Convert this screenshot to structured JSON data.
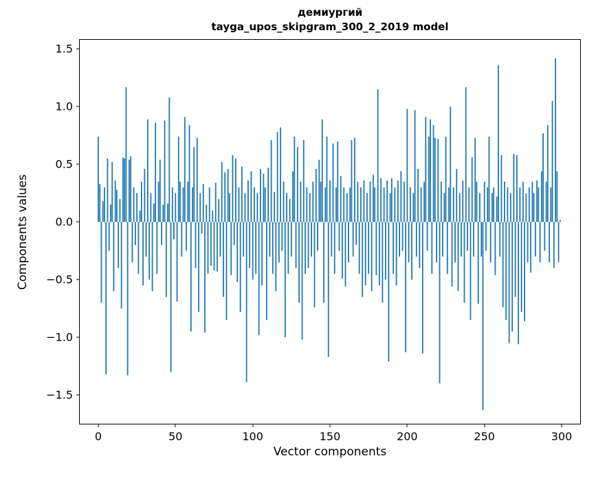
{
  "figure": {
    "background": "#ffffff"
  },
  "chart_data": {
    "type": "bar",
    "title": "демиургий",
    "subtitle": "tayga_upos_skipgram_300_2_2019 model",
    "xlabel": "Vector components",
    "ylabel": "Components values",
    "bar_color": "#1f77b4",
    "grid": false,
    "legend": "none",
    "xlim": [
      -12,
      312
    ],
    "ylim": [
      -1.75,
      1.58
    ],
    "x_ticks": [
      {
        "value": 0,
        "label": "0"
      },
      {
        "value": 50,
        "label": "50"
      },
      {
        "value": 100,
        "label": "100"
      },
      {
        "value": 150,
        "label": "150"
      },
      {
        "value": 200,
        "label": "200"
      },
      {
        "value": 250,
        "label": "250"
      },
      {
        "value": 300,
        "label": "300"
      }
    ],
    "y_ticks": [
      {
        "value": 1.5,
        "label": "1.5"
      },
      {
        "value": 1.0,
        "label": "1.0"
      },
      {
        "value": 0.5,
        "label": "0.5"
      },
      {
        "value": 0.0,
        "label": "0.0"
      },
      {
        "value": -0.5,
        "label": "−0.5"
      },
      {
        "value": -1.0,
        "label": "−1.0"
      },
      {
        "value": -1.5,
        "label": "−1.5"
      }
    ],
    "x_start": 0,
    "values": [
      0.74,
      0.33,
      -0.7,
      0.18,
      0.3,
      -1.32,
      0.55,
      -0.25,
      0.15,
      0.52,
      -0.6,
      0.36,
      0.28,
      -0.4,
      0.2,
      -0.75,
      0.56,
      0.55,
      1.17,
      -1.33,
      0.54,
      0.57,
      -0.35,
      0.3,
      -0.2,
      0.25,
      -0.45,
      0.1,
      0.35,
      -0.55,
      0.46,
      -0.3,
      0.89,
      -0.5,
      0.25,
      -0.6,
      0.16,
      0.86,
      -0.45,
      0.35,
      0.54,
      -0.2,
      0.15,
      0.88,
      -0.65,
      0.16,
      1.08,
      -1.3,
      0.3,
      -0.15,
      0.25,
      -0.69,
      0.74,
      0.35,
      -0.3,
      0.3,
      0.91,
      -0.25,
      0.35,
      0.84,
      -0.95,
      0.3,
      0.65,
      -0.4,
      0.73,
      -0.78,
      0.25,
      -0.1,
      0.33,
      -0.96,
      0.15,
      -0.45,
      0.3,
      -0.38,
      0.1,
      -0.42,
      0.34,
      -0.43,
      0.2,
      -0.3,
      0.52,
      -0.65,
      0.43,
      -0.85,
      0.46,
      0.25,
      -0.46,
      0.58,
      -0.2,
      0.55,
      -0.52,
      0.3,
      -0.78,
      0.48,
      -0.3,
      0.25,
      -1.39,
      0.36,
      -0.4,
      0.44,
      -0.5,
      0.3,
      -0.45,
      0.25,
      -0.98,
      0.46,
      -0.55,
      0.42,
      0.3,
      -0.85,
      0.47,
      -0.3,
      0.71,
      -0.45,
      0.26,
      -0.6,
      0.78,
      -0.35,
      0.82,
      -0.25,
      0.35,
      -1.0,
      0.25,
      -0.45,
      0.2,
      -0.3,
      0.44,
      0.74,
      -0.4,
      0.65,
      -0.7,
      0.35,
      -1.02,
      0.71,
      -0.45,
      0.3,
      -0.4,
      0.25,
      -0.3,
      0.35,
      -0.74,
      0.46,
      -0.25,
      0.54,
      0.35,
      0.89,
      -0.7,
      0.3,
      0.74,
      -1.17,
      0.36,
      -0.3,
      0.68,
      -0.45,
      0.3,
      0.7,
      -0.25,
      0.4,
      -0.49,
      0.3,
      -0.56,
      0.25,
      -0.35,
      0.3,
      0.71,
      -0.3,
      0.73,
      -0.2,
      0.35,
      -0.45,
      0.3,
      -0.65,
      0.36,
      -0.55,
      0.25,
      -0.45,
      0.35,
      -0.6,
      0.41,
      0.3,
      -0.46,
      1.15,
      -0.55,
      0.38,
      -0.7,
      0.3,
      -0.5,
      0.36,
      -1.21,
      0.25,
      0.38,
      -0.45,
      0.3,
      -0.55,
      0.36,
      -0.3,
      0.44,
      -0.25,
      0.35,
      -1.13,
      0.98,
      -0.35,
      0.3,
      -0.5,
      0.25,
      0.97,
      -0.3,
      0.46,
      -0.4,
      0.3,
      -1.14,
      0.35,
      0.91,
      -0.25,
      0.74,
      0.89,
      -0.45,
      0.84,
      0.73,
      -0.35,
      0.72,
      -1.4,
      0.35,
      -0.3,
      0.25,
      0.74,
      -0.45,
      0.3,
      1.0,
      -0.56,
      0.3,
      -0.35,
      0.46,
      -0.6,
      0.25,
      -0.3,
      0.36,
      -0.7,
      1.17,
      -0.25,
      0.3,
      -0.85,
      0.56,
      -0.3,
      0.73,
      0.35,
      -0.71,
      0.25,
      -0.3,
      -1.63,
      0.35,
      -0.25,
      0.3,
      0.74,
      -0.35,
      0.25,
      0.3,
      -0.46,
      0.22,
      1.36,
      -0.3,
      0.58,
      -0.74,
      0.35,
      -0.85,
      0.3,
      -1.05,
      0.25,
      -0.95,
      0.59,
      -0.65,
      0.58,
      -1.06,
      0.3,
      -0.78,
      0.35,
      -0.86,
      0.25,
      -0.35,
      0.3,
      -0.44,
      0.35,
      0.25,
      -0.3,
      0.36,
      0.3,
      -0.35,
      0.44,
      0.77,
      -0.25,
      0.35,
      0.84,
      -0.35,
      0.3,
      1.05,
      -0.4,
      1.42,
      0.44,
      -0.35,
      0.02
    ]
  }
}
